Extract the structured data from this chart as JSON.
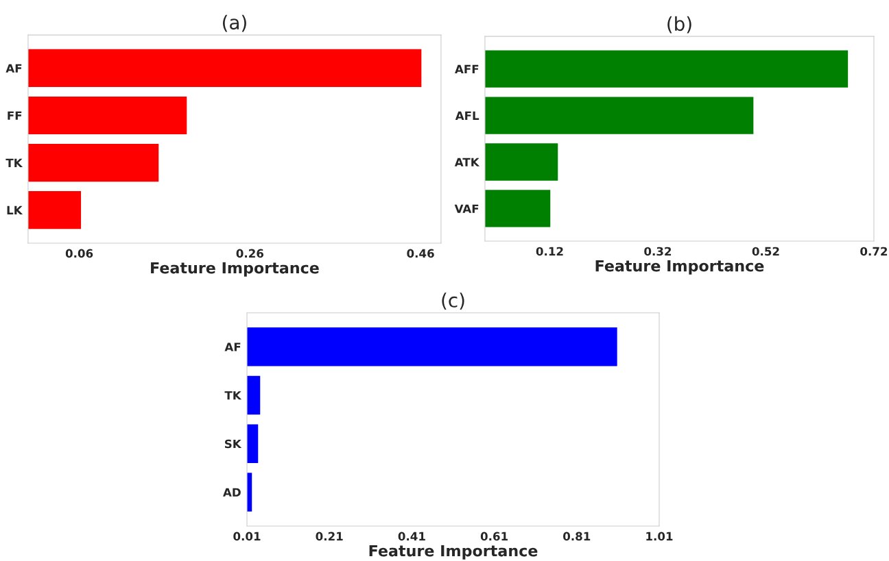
{
  "chart_data": [
    {
      "type": "bar",
      "orientation": "horizontal",
      "title": "(a)",
      "xlabel": "Feature Importance",
      "categories": [
        "AF",
        "FF",
        "TK",
        "LK"
      ],
      "values": [
        0.461,
        0.186,
        0.153,
        0.062
      ],
      "color": "#ff0000",
      "xlim": [
        0,
        0.484
      ],
      "xticks": [
        0.06,
        0.26,
        0.46
      ],
      "grid": false
    },
    {
      "type": "bar",
      "orientation": "horizontal",
      "title": "(b)",
      "xlabel": "Feature Importance",
      "categories": [
        "AFF",
        "AFL",
        "ATK",
        "VAF"
      ],
      "values": [
        0.672,
        0.497,
        0.135,
        0.121
      ],
      "color": "#008000",
      "xlim": [
        0,
        0.72
      ],
      "xticks": [
        0.12,
        0.32,
        0.52,
        0.72
      ],
      "grid": false
    },
    {
      "type": "bar",
      "orientation": "horizontal",
      "title": "(c)",
      "xlabel": "Feature Importance",
      "categories": [
        "AF",
        "TK",
        "SK",
        "AD"
      ],
      "values": [
        0.908,
        0.042,
        0.037,
        0.022
      ],
      "color": "#0000ff",
      "xlim": [
        0.01,
        1.01
      ],
      "xticks": [
        0.01,
        0.21,
        0.41,
        0.61,
        0.81,
        1.01
      ],
      "grid": false
    }
  ]
}
